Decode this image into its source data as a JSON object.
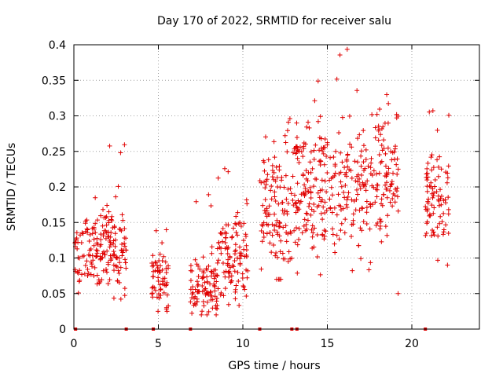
{
  "chart_data": {
    "type": "scatter",
    "title": "Day 170 of 2022, SRMTID for receiver salu",
    "xlabel": "GPS time / hours",
    "ylabel": "SRMTID / TECUs",
    "xlim": [
      0,
      24
    ],
    "ylim": [
      0,
      0.4
    ],
    "x_ticks": [
      0,
      5,
      10,
      15,
      20
    ],
    "x_tick_labels": [
      "0",
      "5",
      "10",
      "15",
      "20"
    ],
    "y_ticks": [
      0,
      0.05,
      0.1,
      0.15,
      0.2,
      0.25,
      0.3,
      0.35,
      0.4
    ],
    "y_tick_labels": [
      "0",
      "0.05",
      "0.1",
      "0.15",
      "0.2",
      "0.25",
      "0.3",
      "0.35",
      "0.4"
    ],
    "grid": true,
    "marker": "plus",
    "series_color": "#e00000",
    "baseline_markers_x": [
      0.1,
      3.1,
      4.7,
      6.9,
      11.0,
      12.9,
      13.2,
      20.8
    ],
    "clusters": [
      {
        "x0": 0.0,
        "x1": 3.1,
        "y_center": 0.11,
        "y_spread": 0.03,
        "y_min": 0.03,
        "y_max": 0.27
      },
      {
        "x0": 4.6,
        "x1": 5.6,
        "y_center": 0.065,
        "y_spread": 0.02,
        "y_min": 0.025,
        "y_max": 0.14
      },
      {
        "x0": 6.9,
        "x1": 8.5,
        "y_center": 0.06,
        "y_spread": 0.02,
        "y_min": 0.02,
        "y_max": 0.19
      },
      {
        "x0": 8.5,
        "x1": 10.3,
        "y_center": 0.1,
        "y_spread": 0.03,
        "y_min": 0.03,
        "y_max": 0.23
      },
      {
        "x0": 11.0,
        "x1": 13.0,
        "y_center": 0.17,
        "y_spread": 0.05,
        "y_min": 0.07,
        "y_max": 0.3
      },
      {
        "x0": 13.0,
        "x1": 19.2,
        "y_center": 0.2,
        "y_spread": 0.05,
        "y_min": 0.05,
        "y_max": 0.4
      },
      {
        "x0": 20.8,
        "x1": 22.2,
        "y_center": 0.18,
        "y_spread": 0.04,
        "y_min": 0.09,
        "y_max": 0.32
      }
    ]
  }
}
